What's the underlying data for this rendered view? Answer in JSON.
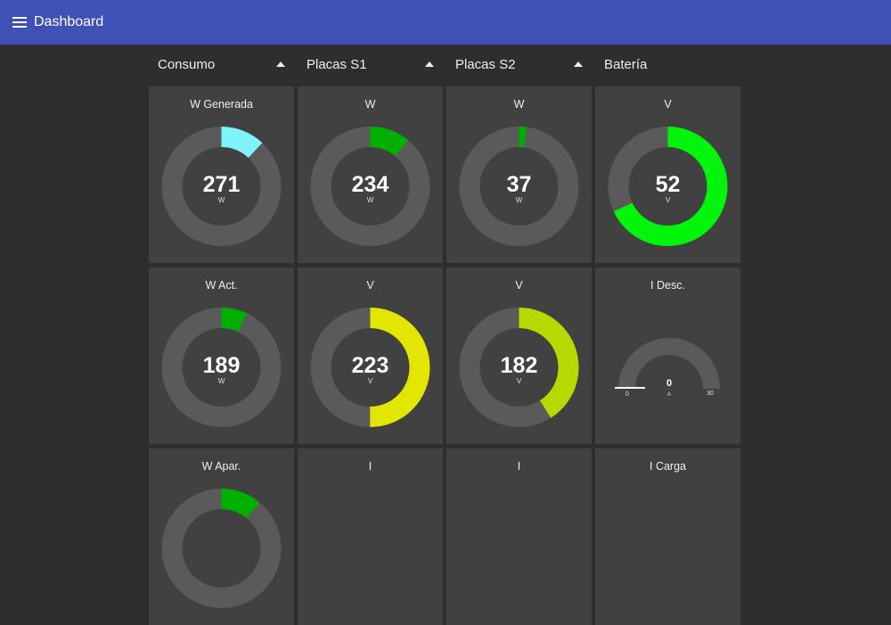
{
  "header": {
    "title": "Dashboard"
  },
  "groups": [
    {
      "label": "Consumo"
    },
    {
      "label": "Placas S1"
    },
    {
      "label": "Placas S2"
    },
    {
      "label": "Batería"
    }
  ],
  "colors": {
    "topbar": "#3f51b5",
    "background": "#2e2e2e",
    "card": "#414141",
    "track": "#5a5a5a",
    "cyan": "#7ef3fb",
    "green": "#00b000",
    "bright_green": "#00f50a",
    "yellow": "#e3e600",
    "yellow_green": "#b6d900",
    "white": "#ffffff"
  },
  "widgets": [
    {
      "label": "W Generada",
      "type": "donut",
      "value": "271",
      "unit": "W",
      "fill": 0.12,
      "color": "cyan"
    },
    {
      "label": "W",
      "type": "donut",
      "value": "234",
      "unit": "W",
      "fill": 0.11,
      "color": "green"
    },
    {
      "label": "W",
      "type": "donut",
      "value": "37",
      "unit": "W",
      "fill": 0.02,
      "color": "green"
    },
    {
      "label": "V",
      "type": "donut",
      "value": "52",
      "unit": "V",
      "fill": 0.68,
      "color": "bright_green"
    },
    {
      "label": "W Act.",
      "type": "donut",
      "value": "189",
      "unit": "W",
      "fill": 0.07,
      "color": "green"
    },
    {
      "label": "V",
      "type": "donut",
      "value": "223",
      "unit": "V",
      "fill": 0.5,
      "color": "yellow"
    },
    {
      "label": "V",
      "type": "donut",
      "value": "182",
      "unit": "V",
      "fill": 0.41,
      "color": "yellow_green"
    },
    {
      "label": "I Desc.",
      "type": "gauge",
      "value": "0",
      "unit": "A",
      "min": "0",
      "max": "30",
      "fill": 0.0,
      "color": "white"
    },
    {
      "label": "W Apar.",
      "type": "donut",
      "value": "",
      "unit": "",
      "fill": 0.11,
      "color": "green"
    },
    {
      "label": "I",
      "type": "empty"
    },
    {
      "label": "I",
      "type": "empty"
    },
    {
      "label": "I Carga",
      "type": "empty"
    }
  ]
}
